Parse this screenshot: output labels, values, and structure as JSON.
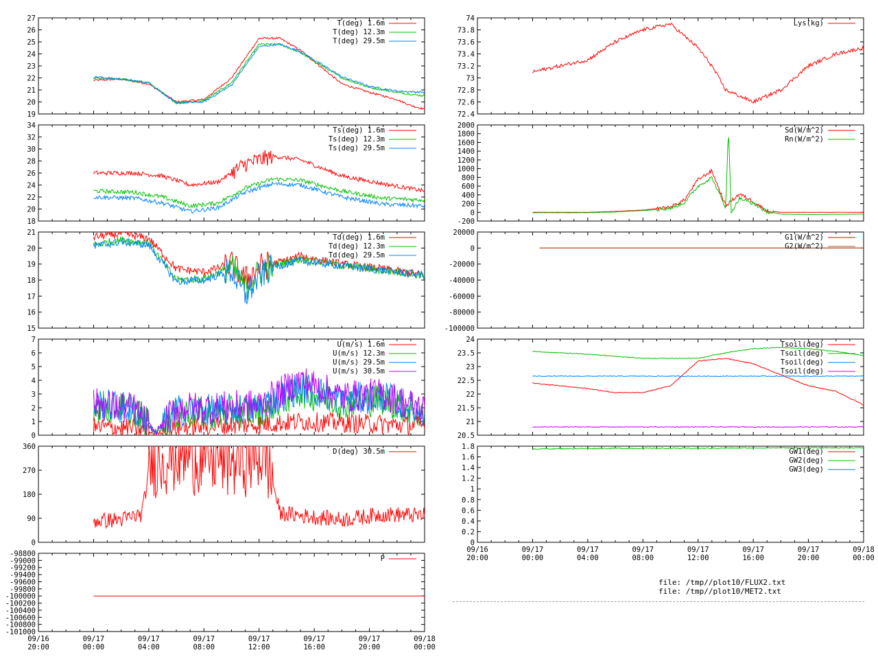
{
  "colors": {
    "red": "#ff0000",
    "green": "#00c000",
    "blue": "#0080ff",
    "purple": "#c000ff",
    "brown": "#a05a2c"
  },
  "files": [
    "file: /tmp//plot10/FLUX2.txt",
    "file: /tmp//plot10/MET2.txt"
  ],
  "chart_data": [
    {
      "id": "T",
      "type": "line",
      "ylim": [
        19,
        27
      ],
      "yticks": [
        "19",
        "20",
        "21",
        "22",
        "23",
        "24",
        "25",
        "26",
        "27"
      ],
      "legend_position": "top-right",
      "series": [
        {
          "name": "T(deg)  1.6m",
          "color": "red",
          "x": [
            0,
            2,
            4,
            6,
            8,
            10,
            12,
            13.5,
            15,
            18,
            20,
            22,
            23,
            24
          ],
          "y": [
            21.8,
            21.9,
            21.5,
            20.0,
            20.2,
            22.0,
            25.3,
            25.3,
            24.3,
            21.5,
            20.8,
            20.2,
            19.7,
            19.4
          ]
        },
        {
          "name": "T(deg) 12.3m",
          "color": "green",
          "x": [
            0,
            2,
            4,
            6,
            8,
            10,
            12,
            13.5,
            15,
            18,
            20,
            22,
            24
          ],
          "y": [
            22.0,
            21.9,
            21.6,
            19.9,
            20.1,
            21.6,
            24.8,
            24.8,
            24.1,
            22.0,
            21.2,
            20.8,
            20.5
          ]
        },
        {
          "name": "T(deg) 29.5m",
          "color": "blue",
          "x": [
            0,
            2,
            4,
            6,
            8,
            10,
            12,
            13.5,
            15,
            18,
            20,
            22,
            24
          ],
          "y": [
            22.1,
            21.9,
            21.6,
            19.9,
            20.0,
            21.4,
            24.6,
            24.8,
            24.2,
            22.1,
            21.3,
            20.9,
            20.8
          ]
        }
      ]
    },
    {
      "id": "Ts",
      "type": "line",
      "ylim": [
        18,
        34
      ],
      "yticks": [
        "18",
        "20",
        "22",
        "24",
        "26",
        "28",
        "30",
        "32",
        "34"
      ],
      "legend_position": "top-right",
      "series": [
        {
          "name": "Ts(deg)  1.6m",
          "color": "red",
          "x": [
            0,
            3,
            5,
            7,
            9,
            11,
            13,
            15,
            18,
            21,
            24
          ],
          "y": [
            26.0,
            26.0,
            25.5,
            24.0,
            24.5,
            27.5,
            28.8,
            28.2,
            25.5,
            24.2,
            23.0
          ]
        },
        {
          "name": "Ts(deg) 12.3m",
          "color": "green",
          "x": [
            0,
            3,
            5,
            7,
            9,
            11,
            13,
            15,
            18,
            21,
            24
          ],
          "y": [
            23.0,
            22.8,
            22.0,
            20.5,
            21.0,
            23.5,
            25.0,
            24.8,
            23.0,
            21.8,
            21.5
          ]
        },
        {
          "name": "Ts(deg) 29.5m",
          "color": "blue",
          "x": [
            0,
            3,
            5,
            7,
            9,
            11,
            13,
            15,
            18,
            21,
            24
          ],
          "y": [
            22.0,
            21.8,
            21.0,
            19.6,
            20.2,
            22.8,
            24.2,
            24.0,
            22.0,
            20.8,
            20.5
          ]
        }
      ]
    },
    {
      "id": "Td",
      "type": "line",
      "ylim": [
        15,
        21
      ],
      "yticks": [
        "15",
        "16",
        "17",
        "18",
        "19",
        "20",
        "21"
      ],
      "legend_position": "top-right",
      "series": [
        {
          "name": "Td(deg)  1.6m",
          "color": "red",
          "x": [
            0,
            2,
            4,
            6,
            8,
            10,
            11,
            12,
            13,
            15,
            18,
            21,
            24
          ],
          "y": [
            20.7,
            20.9,
            20.6,
            18.7,
            18.5,
            19.0,
            18.0,
            18.8,
            19.0,
            19.5,
            19.0,
            18.7,
            18.3
          ]
        },
        {
          "name": "Td(deg) 12.3m",
          "color": "green",
          "x": [
            0,
            2,
            4,
            6,
            8,
            10,
            11,
            12,
            13,
            15,
            18,
            21,
            24
          ],
          "y": [
            20.2,
            20.5,
            20.3,
            18.0,
            18.1,
            18.8,
            17.5,
            18.5,
            18.9,
            19.3,
            18.9,
            18.6,
            18.3
          ]
        },
        {
          "name": "Td(deg) 29.5m",
          "color": "blue",
          "x": [
            0,
            2,
            4,
            6,
            8,
            10,
            11,
            12,
            13,
            15,
            18,
            21,
            24
          ],
          "y": [
            20.1,
            20.4,
            20.2,
            17.9,
            18.0,
            18.6,
            17.0,
            18.2,
            18.8,
            19.2,
            18.9,
            18.6,
            18.3
          ]
        }
      ]
    },
    {
      "id": "U",
      "type": "line",
      "ylim": [
        0,
        7
      ],
      "yticks": [
        "0",
        "1",
        "2",
        "3",
        "4",
        "5",
        "6",
        "7"
      ],
      "legend_position": "top-right",
      "series": [
        {
          "name": "U(m/s)  1.6m",
          "color": "red",
          "x": [
            0,
            3,
            4.5,
            6,
            9,
            12,
            15,
            18,
            21,
            24
          ],
          "y": [
            0.6,
            0.5,
            0.1,
            0.6,
            0.7,
            0.8,
            1.0,
            0.9,
            0.8,
            0.7
          ]
        },
        {
          "name": "U(m/s) 12.3m",
          "color": "green",
          "x": [
            0,
            3,
            4.5,
            6,
            9,
            12,
            15,
            18,
            21,
            24
          ],
          "y": [
            2.2,
            1.8,
            0.2,
            1.6,
            1.6,
            1.8,
            3.2,
            2.4,
            2.6,
            1.5
          ]
        },
        {
          "name": "U(m/s) 29.5m",
          "color": "blue",
          "x": [
            0,
            3,
            4.5,
            6,
            9,
            12,
            15,
            18,
            21,
            24
          ],
          "y": [
            2.3,
            1.9,
            0.2,
            1.8,
            1.8,
            2.0,
            3.5,
            2.6,
            2.8,
            1.7
          ]
        },
        {
          "name": "U(m/s) 30.5m",
          "color": "purple",
          "x": [
            0,
            3,
            4.5,
            6,
            9,
            12,
            15,
            18,
            21,
            24
          ],
          "y": [
            2.3,
            1.9,
            0.2,
            2.0,
            2.0,
            2.2,
            4.0,
            2.8,
            3.0,
            1.8
          ]
        }
      ]
    },
    {
      "id": "D",
      "type": "line",
      "ylim": [
        0,
        360
      ],
      "yticks": [
        "0",
        "90",
        "180",
        "270",
        "360"
      ],
      "legend_position": "top-right",
      "series": [
        {
          "name": "D(deg)  30.5m",
          "color": "red",
          "x": [
            0,
            2,
            3.5,
            4.2,
            6,
            8,
            10,
            12.5,
            13.5,
            15,
            18,
            21,
            24
          ],
          "y": [
            80,
            85,
            105,
            320,
            340,
            330,
            320,
            340,
            110,
            100,
            85,
            105,
            100
          ]
        }
      ]
    },
    {
      "id": "P",
      "type": "line",
      "ylim": [
        -101000,
        -98800
      ],
      "yticks": [
        "-101000",
        "-100800",
        "-100600",
        "-100400",
        "-100200",
        "-100000",
        "-99800",
        "-99600",
        "-99400",
        "-99200",
        "-99000",
        "-98800"
      ],
      "legend_position": "top-right",
      "series": [
        {
          "name": "P",
          "color": "red",
          "x": [
            0,
            24
          ],
          "y": [
            -100000,
            -100000
          ]
        }
      ]
    },
    {
      "id": "Lys",
      "type": "line",
      "ylim": [
        72.4,
        74
      ],
      "yticks": [
        "72.4",
        "72.6",
        "72.8",
        "73",
        "73.2",
        "73.4",
        "73.6",
        "73.8",
        "74"
      ],
      "legend_position": "top-right",
      "series": [
        {
          "name": "Lys(kg)",
          "color": "red",
          "x": [
            0,
            2,
            4,
            6,
            8,
            10,
            12,
            13,
            14,
            16,
            18,
            19,
            20,
            22,
            24
          ],
          "y": [
            73.1,
            73.2,
            73.3,
            73.6,
            73.8,
            73.9,
            73.5,
            73.2,
            72.8,
            72.6,
            72.8,
            73.0,
            73.2,
            73.4,
            73.5
          ]
        }
      ]
    },
    {
      "id": "Sd",
      "type": "line",
      "ylim": [
        -200,
        2000
      ],
      "yticks": [
        "-200",
        "0",
        "200",
        "400",
        "600",
        "800",
        "1000",
        "1200",
        "1400",
        "1600",
        "1800",
        "2000"
      ],
      "legend_position": "top-right",
      "series": [
        {
          "name": "Sd(W/m^2)",
          "color": "red",
          "x": [
            0,
            4,
            6,
            8,
            10,
            11,
            12,
            13,
            14,
            15,
            16,
            17,
            18,
            20,
            24
          ],
          "y": [
            0,
            0,
            20,
            50,
            120,
            280,
            750,
            950,
            150,
            420,
            250,
            30,
            0,
            0,
            0
          ]
        },
        {
          "name": "Rn(W/m^2)",
          "color": "green",
          "x": [
            0,
            4,
            6,
            8,
            10,
            11,
            12,
            13,
            14,
            14.2,
            14.4,
            15,
            16,
            17,
            18,
            20,
            24
          ],
          "y": [
            -10,
            -10,
            10,
            40,
            90,
            220,
            600,
            800,
            100,
            1900,
            0,
            320,
            200,
            10,
            -40,
            -50,
            -40
          ]
        }
      ]
    },
    {
      "id": "G",
      "type": "line",
      "ylim": [
        -100000,
        20000
      ],
      "yticks": [
        "-100000",
        "-80000",
        "-60000",
        "-40000",
        "-20000",
        "0",
        "20000"
      ],
      "legend_position": "top-right",
      "series": [
        {
          "name": "G1(W/m^2)",
          "color": "red",
          "x": [
            0,
            24
          ],
          "y": [
            0,
            0
          ]
        },
        {
          "name": "G2(W/m^2)",
          "color": "brown",
          "x": [
            0,
            24
          ],
          "y": [
            0,
            0
          ]
        }
      ]
    },
    {
      "id": "Tsoil",
      "type": "line",
      "ylim": [
        20.5,
        24
      ],
      "yticks": [
        "20.5",
        "21",
        "21.5",
        "22",
        "22.5",
        "23",
        "23.5",
        "24"
      ],
      "legend_position": "top-right",
      "series": [
        {
          "name": "Tsoil(deg)",
          "color": "red",
          "x": [
            0,
            4,
            6,
            8,
            10,
            12,
            14,
            16,
            18,
            20,
            22,
            24
          ],
          "y": [
            22.4,
            22.2,
            22.05,
            22.05,
            22.3,
            23.2,
            23.3,
            23.1,
            22.7,
            22.3,
            22.1,
            21.6
          ]
        },
        {
          "name": "Tsoil(deg)",
          "color": "green",
          "x": [
            0,
            4,
            8,
            12,
            14,
            16,
            18,
            20,
            22,
            24
          ],
          "y": [
            23.55,
            23.45,
            23.3,
            23.3,
            23.5,
            23.65,
            23.7,
            23.65,
            23.55,
            23.4
          ]
        },
        {
          "name": "Tsoil(deg)",
          "color": "blue",
          "x": [
            0,
            24
          ],
          "y": [
            22.65,
            22.65
          ]
        },
        {
          "name": "Tsoil(deg)",
          "color": "purple",
          "x": [
            0,
            24
          ],
          "y": [
            20.8,
            20.8
          ]
        }
      ]
    },
    {
      "id": "GW",
      "type": "line",
      "ylim": [
        0,
        1.8
      ],
      "yticks": [
        "0",
        "0.2",
        "0.4",
        "0.6",
        "0.8",
        "1",
        "1.2",
        "1.4",
        "1.6",
        "1.8"
      ],
      "legend_position": "top-right",
      "series": [
        {
          "name": "GW1(deg)",
          "color": "red",
          "x": [],
          "y": []
        },
        {
          "name": "GW2(deg)",
          "color": "green",
          "x": [
            0,
            6,
            12,
            18,
            24
          ],
          "y": [
            1.75,
            1.76,
            1.76,
            1.77,
            1.77
          ]
        },
        {
          "name": "GW3(deg)",
          "color": "blue",
          "x": [],
          "y": []
        }
      ]
    }
  ],
  "time_axis": {
    "dates": [
      "09/16",
      "09/17",
      "09/17",
      "09/17",
      "09/17",
      "09/17",
      "09/17",
      "09/18"
    ],
    "times": [
      "20:00",
      "00:00",
      "04:00",
      "08:00",
      "12:00",
      "16:00",
      "20:00",
      "00:00"
    ]
  }
}
